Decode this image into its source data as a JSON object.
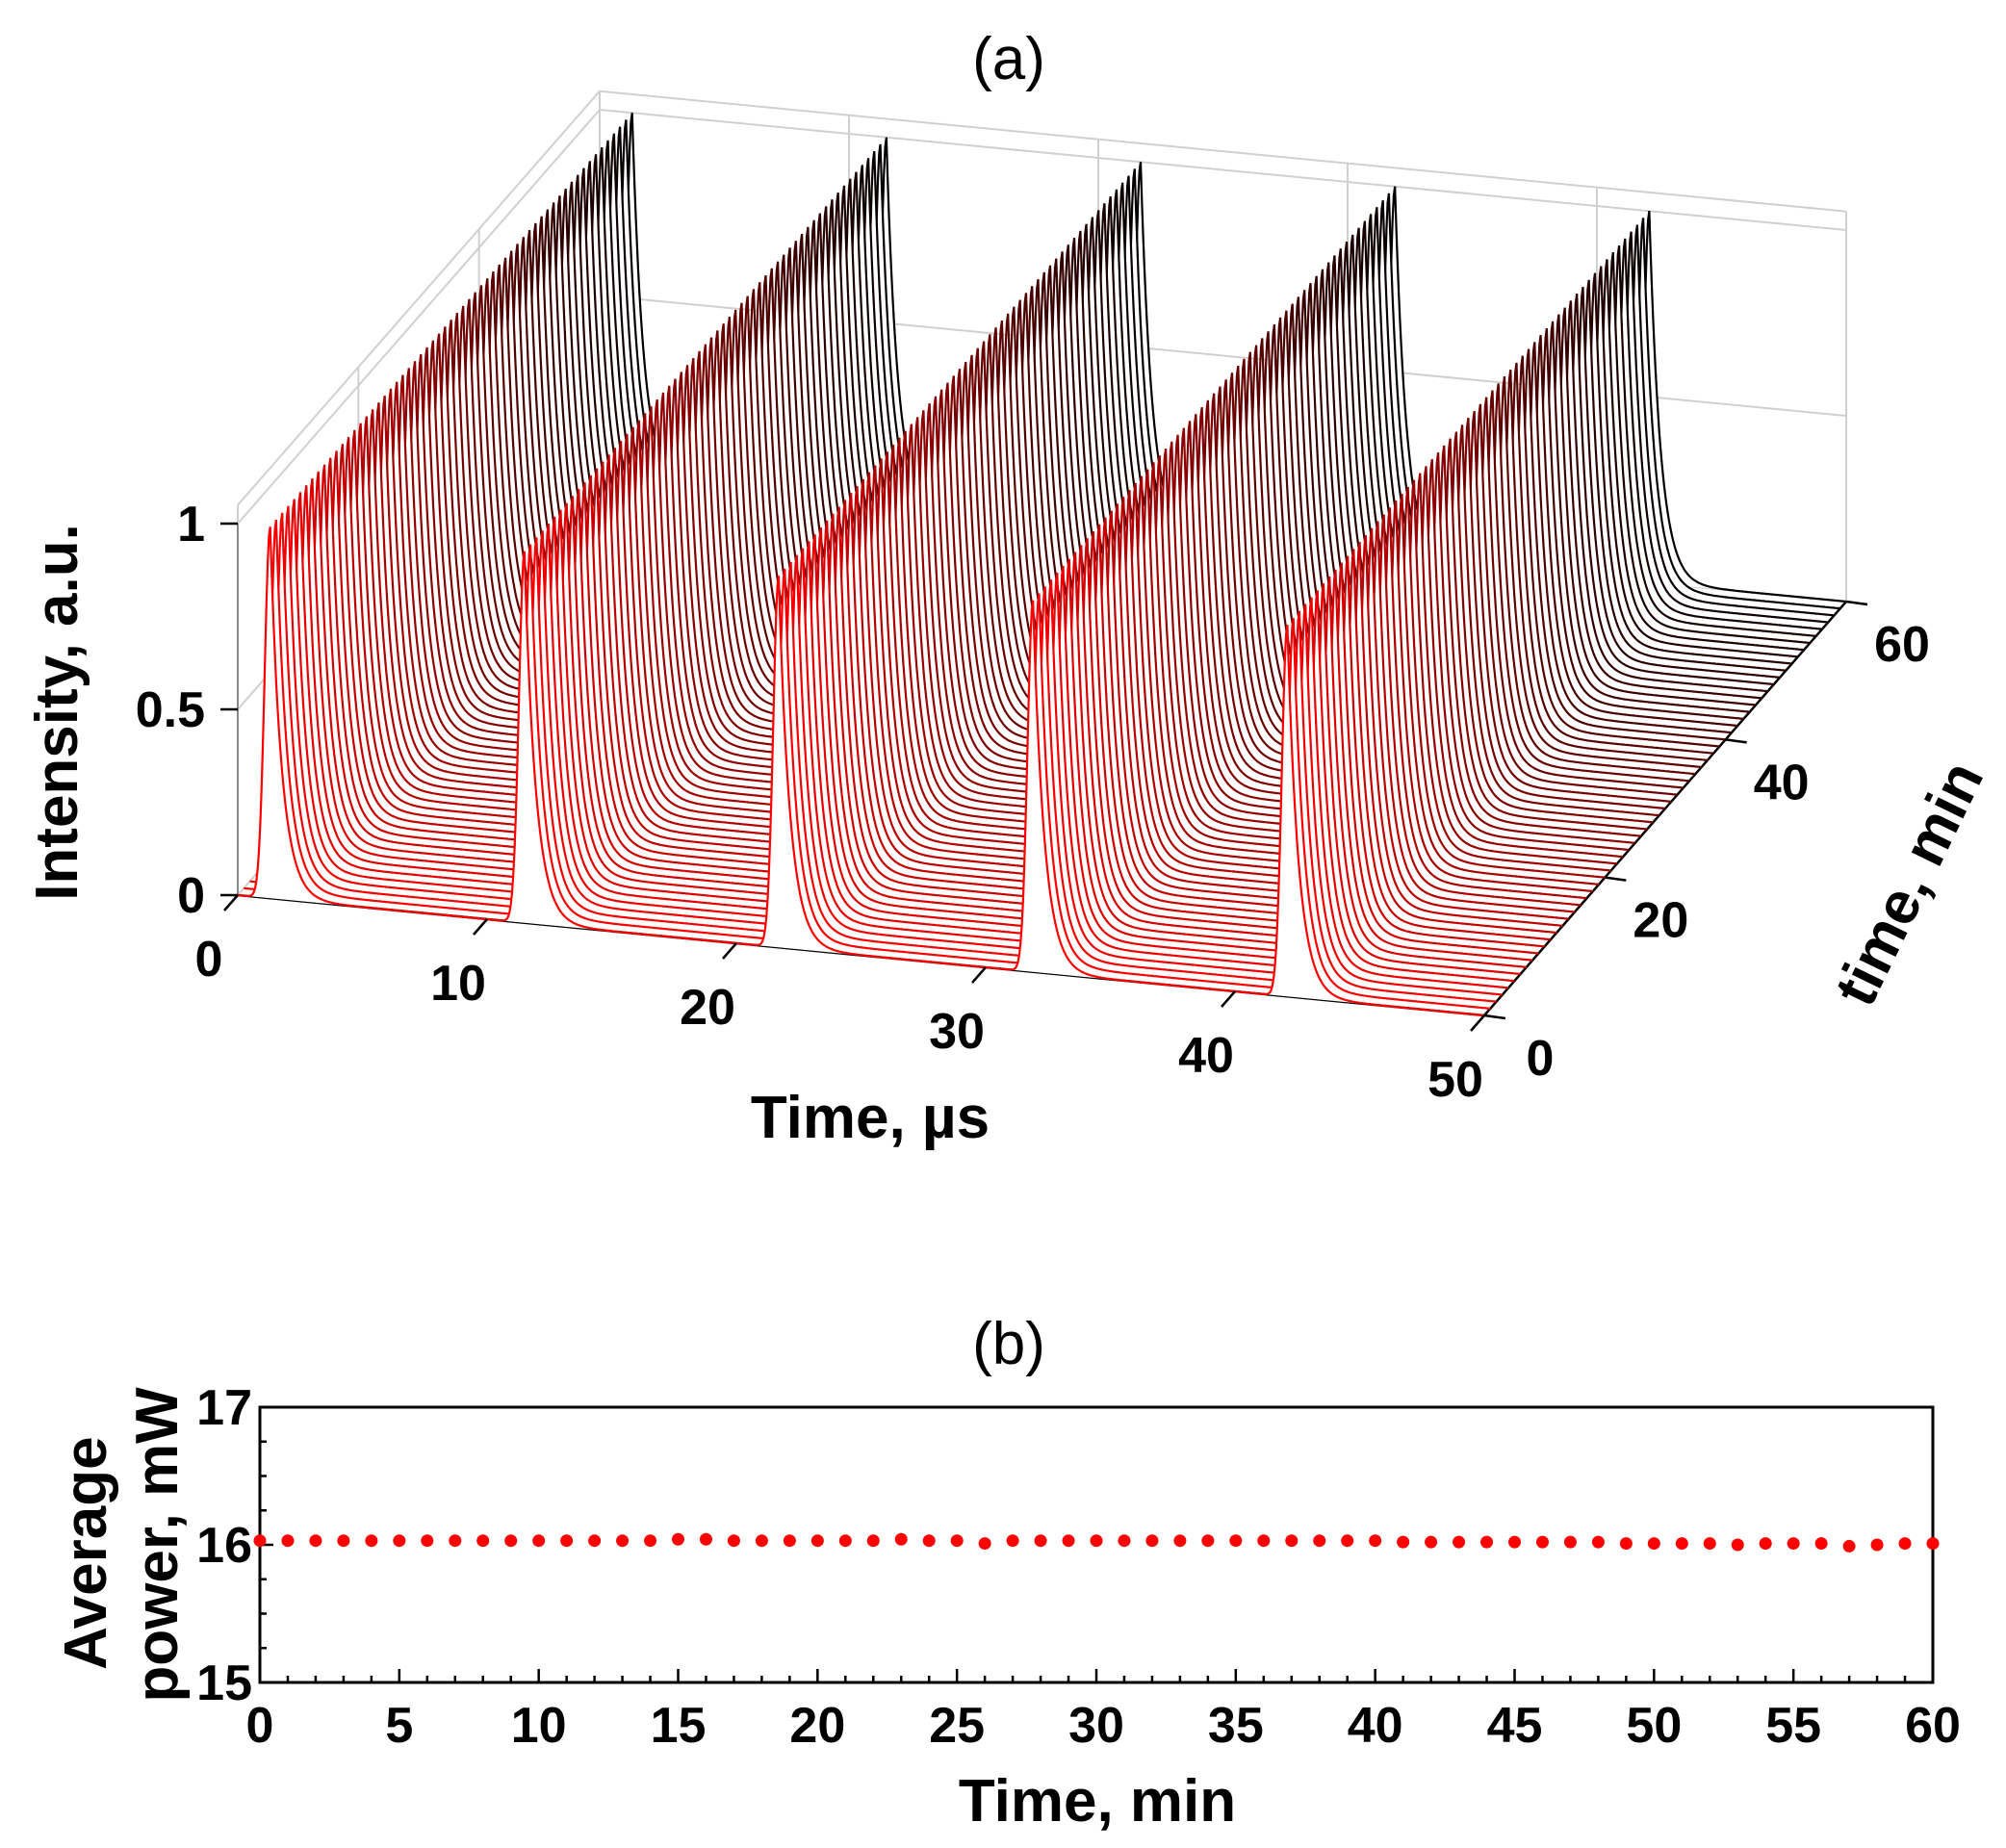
{
  "chart_data": [
    {
      "panel": "(a)",
      "type": "line",
      "projection": "3d-waterfall",
      "xlabel": "Time, µs",
      "ylabel": "time, min",
      "zlabel": "Intensity, a.u.",
      "xlim": [
        0,
        50
      ],
      "ylim": [
        0,
        60
      ],
      "zlim": [
        0,
        1
      ],
      "x_ticks": [
        "0",
        "10",
        "20",
        "30",
        "40",
        "50"
      ],
      "y_ticks": [
        "0",
        "20",
        "40",
        "60"
      ],
      "z_ticks": [
        "0",
        "0.5",
        "1"
      ],
      "pulse_period_us": 10.2,
      "pulse_peak_times_us": [
        1.3,
        11.5,
        21.7,
        31.9,
        42.1
      ],
      "pulse_peak_intensity": 1,
      "traces_recorded_every_min": 1,
      "trace_count": 61,
      "grid": true,
      "color_gradient": {
        "at_0_min": "#ff0000",
        "at_60_min": "#000000"
      }
    },
    {
      "panel": "(b)",
      "type": "scatter",
      "xlabel": "Time, min",
      "ylabel": "Average power, mW",
      "xlim": [
        0,
        60
      ],
      "ylim": [
        15,
        17
      ],
      "x_ticks": [
        "0",
        "5",
        "10",
        "15",
        "20",
        "25",
        "30",
        "35",
        "40",
        "45",
        "50",
        "55",
        "60"
      ],
      "y_ticks": [
        "15",
        "16",
        "17"
      ],
      "marker_color": "#ff0000",
      "x": [
        0,
        1,
        2,
        3,
        4,
        5,
        6,
        7,
        8,
        9,
        10,
        11,
        12,
        13,
        14,
        15,
        16,
        17,
        18,
        19,
        20,
        21,
        22,
        23,
        24,
        25,
        26,
        27,
        28,
        29,
        30,
        31,
        32,
        33,
        34,
        35,
        36,
        37,
        38,
        39,
        40,
        41,
        42,
        43,
        44,
        45,
        46,
        47,
        48,
        49,
        50,
        51,
        52,
        53,
        54,
        55,
        56,
        57,
        58,
        59,
        60
      ],
      "y": [
        16.03,
        16.03,
        16.03,
        16.03,
        16.03,
        16.03,
        16.03,
        16.03,
        16.03,
        16.03,
        16.03,
        16.03,
        16.03,
        16.03,
        16.03,
        16.04,
        16.04,
        16.03,
        16.03,
        16.03,
        16.03,
        16.03,
        16.03,
        16.04,
        16.03,
        16.03,
        16.01,
        16.03,
        16.03,
        16.03,
        16.03,
        16.03,
        16.03,
        16.03,
        16.03,
        16.03,
        16.03,
        16.03,
        16.03,
        16.03,
        16.03,
        16.02,
        16.02,
        16.02,
        16.02,
        16.02,
        16.02,
        16.02,
        16.02,
        16.01,
        16.01,
        16.01,
        16.01,
        16.0,
        16.01,
        16.01,
        16.01,
        15.99,
        16.0,
        16.01,
        16.01
      ]
    }
  ]
}
